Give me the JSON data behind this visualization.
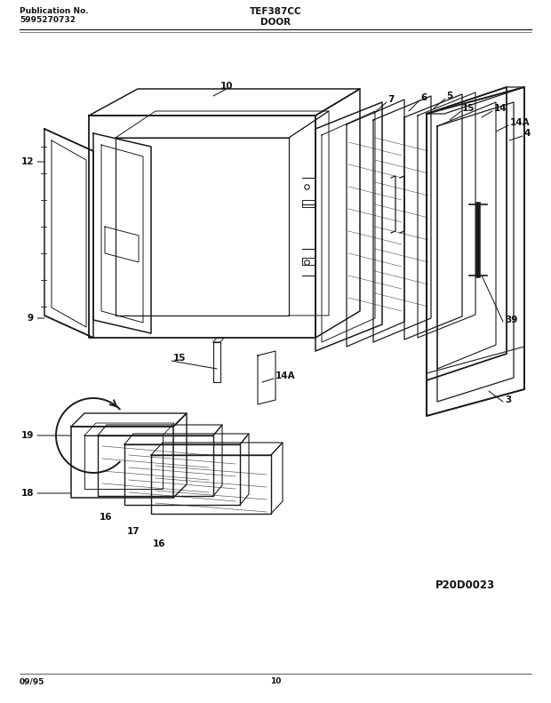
{
  "title_left_line1": "Publication No.",
  "title_left_line2": "5995270732",
  "title_center_top": "TEF387CC",
  "title_center_bottom": "DOOR",
  "footer_left": "09/95",
  "footer_center": "10",
  "diagram_code": "P20D0023",
  "bg_color": "#ffffff",
  "line_color": "#1a1a1a",
  "text_color": "#111111"
}
